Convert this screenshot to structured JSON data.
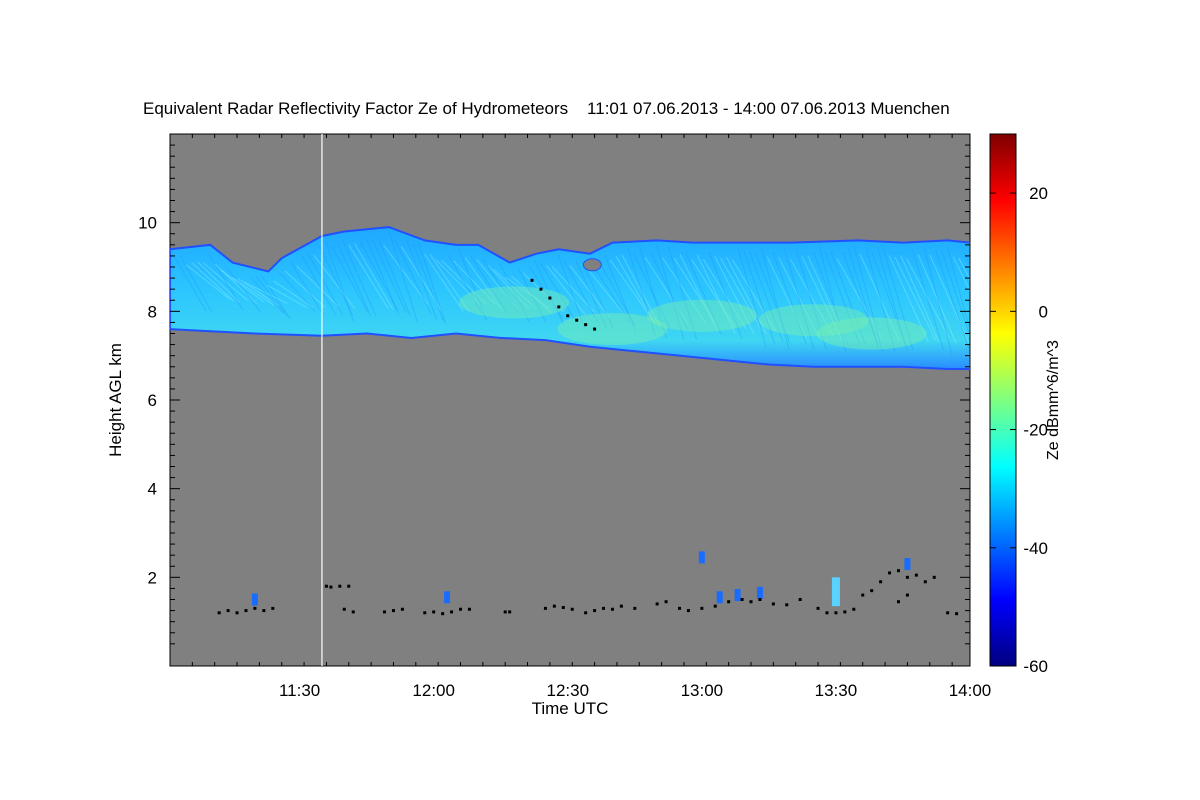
{
  "chart_data": {
    "type": "heatmap",
    "title": "Equivalent Radar Reflectivity Factor Ze of Hydrometeors    11:01 07.06.2013 - 14:00 07.06.2013 Muenchen",
    "xlabel": "Time UTC",
    "ylabel": "Height AGL km",
    "colorbar_label": "Ze dBmm^6/m^3",
    "background_color": "#808080",
    "x_range_minutes": [
      661,
      840
    ],
    "y_range_km": [
      0,
      12
    ],
    "x_ticks": [
      {
        "minute": 690,
        "label": "11:30"
      },
      {
        "minute": 720,
        "label": "12:00"
      },
      {
        "minute": 750,
        "label": "12:30"
      },
      {
        "minute": 780,
        "label": "13:00"
      },
      {
        "minute": 810,
        "label": "13:30"
      },
      {
        "minute": 840,
        "label": "14:00"
      }
    ],
    "y_ticks": [
      {
        "value": 2,
        "label": "2"
      },
      {
        "value": 4,
        "label": "4"
      },
      {
        "value": 6,
        "label": "6"
      },
      {
        "value": 8,
        "label": "8"
      },
      {
        "value": 10,
        "label": "10"
      }
    ],
    "colorbar_range": [
      -60,
      30
    ],
    "colorbar_ticks": [
      {
        "value": 20,
        "label": "20"
      },
      {
        "value": 0,
        "label": "0"
      },
      {
        "value": -20,
        "label": "-20"
      },
      {
        "value": -40,
        "label": "-40"
      },
      {
        "value": -60,
        "label": "-60"
      }
    ],
    "colormap": [
      "#00007f",
      "#0000ff",
      "#007fff",
      "#00ffff",
      "#7fff7f",
      "#ffff00",
      "#ff7f00",
      "#ff0000",
      "#7f0000"
    ],
    "cloud_layer": {
      "color": "#22b4ff",
      "edge_color": "#2050ff",
      "core_color": "#78f0b0",
      "typical_ze": -28,
      "top_km": [
        [
          661,
          9.4
        ],
        [
          670,
          9.5
        ],
        [
          675,
          9.1
        ],
        [
          683,
          8.9
        ],
        [
          686,
          9.2
        ],
        [
          695,
          9.7
        ],
        [
          700,
          9.8
        ],
        [
          710,
          9.9
        ],
        [
          718,
          9.6
        ],
        [
          725,
          9.5
        ],
        [
          730,
          9.5
        ],
        [
          737,
          9.1
        ],
        [
          743,
          9.3
        ],
        [
          748,
          9.4
        ],
        [
          755,
          9.3
        ],
        [
          760,
          9.55
        ],
        [
          770,
          9.6
        ],
        [
          778,
          9.55
        ],
        [
          790,
          9.55
        ],
        [
          800,
          9.55
        ],
        [
          815,
          9.6
        ],
        [
          825,
          9.55
        ],
        [
          835,
          9.6
        ],
        [
          840,
          9.55
        ]
      ],
      "base_km": [
        [
          661,
          7.6
        ],
        [
          670,
          7.55
        ],
        [
          680,
          7.5
        ],
        [
          695,
          7.45
        ],
        [
          705,
          7.5
        ],
        [
          715,
          7.4
        ],
        [
          725,
          7.5
        ],
        [
          735,
          7.4
        ],
        [
          745,
          7.35
        ],
        [
          755,
          7.2
        ],
        [
          765,
          7.1
        ],
        [
          775,
          7.0
        ],
        [
          785,
          6.9
        ],
        [
          795,
          6.8
        ],
        [
          805,
          6.75
        ],
        [
          815,
          6.75
        ],
        [
          825,
          6.75
        ],
        [
          835,
          6.7
        ],
        [
          840,
          6.7
        ]
      ]
    },
    "data_gap_minute": 695,
    "low_echoes": [
      {
        "minute": 780,
        "km": 2.45,
        "color": "#1a6cff"
      },
      {
        "minute": 784,
        "km": 1.55,
        "color": "#1a6cff"
      },
      {
        "minute": 788,
        "km": 1.6,
        "color": "#1a6cff"
      },
      {
        "minute": 793,
        "km": 1.65,
        "color": "#1a6cff"
      },
      {
        "minute": 810,
        "km": 1.65,
        "color": "#35b8ff"
      },
      {
        "minute": 826,
        "km": 2.3,
        "color": "#1a6cff"
      },
      {
        "minute": 723,
        "km": 1.55,
        "color": "#1a6cff"
      },
      {
        "minute": 680,
        "km": 1.5,
        "color": "#1a6cff"
      }
    ],
    "black_points": [
      [
        672,
        1.2
      ],
      [
        674,
        1.25
      ],
      [
        676,
        1.2
      ],
      [
        678,
        1.25
      ],
      [
        680,
        1.3
      ],
      [
        682,
        1.25
      ],
      [
        684,
        1.3
      ],
      [
        696,
        1.8
      ],
      [
        697,
        1.78
      ],
      [
        699,
        1.8
      ],
      [
        701,
        1.8
      ],
      [
        700,
        1.28
      ],
      [
        702,
        1.22
      ],
      [
        709,
        1.22
      ],
      [
        711,
        1.25
      ],
      [
        713,
        1.28
      ],
      [
        718,
        1.2
      ],
      [
        720,
        1.22
      ],
      [
        722,
        1.18
      ],
      [
        724,
        1.22
      ],
      [
        726,
        1.28
      ],
      [
        728,
        1.28
      ],
      [
        736,
        1.22
      ],
      [
        737,
        1.22
      ],
      [
        742,
        8.7
      ],
      [
        744,
        8.5
      ],
      [
        746,
        8.3
      ],
      [
        748,
        8.1
      ],
      [
        750,
        7.9
      ],
      [
        752,
        7.8
      ],
      [
        754,
        7.7
      ],
      [
        756,
        7.6
      ],
      [
        745,
        1.3
      ],
      [
        747,
        1.35
      ],
      [
        749,
        1.32
      ],
      [
        751,
        1.28
      ],
      [
        754,
        1.2
      ],
      [
        756,
        1.25
      ],
      [
        758,
        1.3
      ],
      [
        760,
        1.28
      ],
      [
        762,
        1.35
      ],
      [
        765,
        1.3
      ],
      [
        770,
        1.4
      ],
      [
        772,
        1.45
      ],
      [
        775,
        1.3
      ],
      [
        777,
        1.25
      ],
      [
        780,
        1.3
      ],
      [
        783,
        1.35
      ],
      [
        786,
        1.45
      ],
      [
        789,
        1.5
      ],
      [
        791,
        1.45
      ],
      [
        793,
        1.5
      ],
      [
        796,
        1.4
      ],
      [
        799,
        1.38
      ],
      [
        802,
        1.5
      ],
      [
        806,
        1.3
      ],
      [
        808,
        1.2
      ],
      [
        810,
        1.2
      ],
      [
        812,
        1.22
      ],
      [
        814,
        1.28
      ],
      [
        816,
        1.6
      ],
      [
        818,
        1.7
      ],
      [
        820,
        1.9
      ],
      [
        822,
        2.1
      ],
      [
        824,
        2.15
      ],
      [
        826,
        2.0
      ],
      [
        828,
        2.05
      ],
      [
        830,
        1.9
      ],
      [
        832,
        2.0
      ],
      [
        824,
        1.45
      ],
      [
        826,
        1.6
      ],
      [
        835,
        1.2
      ],
      [
        837,
        1.18
      ]
    ]
  }
}
